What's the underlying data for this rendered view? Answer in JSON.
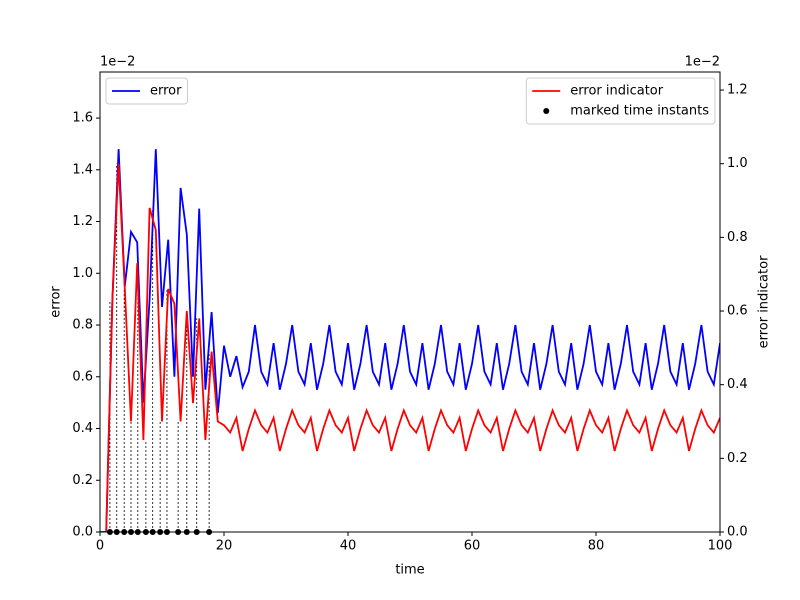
{
  "chart_data": {
    "type": "line",
    "xlabel": "time",
    "ylabel": "error",
    "y2label": "error indicator",
    "y_offset_text": "1e−2",
    "y2_offset_text": "1e−2",
    "xlim": [
      0,
      100
    ],
    "xticks": [
      0,
      20,
      40,
      60,
      80,
      100
    ],
    "ylim": [
      0,
      1.778
    ],
    "yticks": [
      {
        "value": 0,
        "label": "0.0"
      },
      0.2,
      0.4,
      0.6,
      0.8,
      {
        "value": 1,
        "label": "1.0"
      },
      1.2,
      1.4,
      1.6
    ],
    "y2lim": [
      0,
      1.249
    ],
    "y2ticks": [
      {
        "value": 0,
        "label": "0.0"
      },
      0.2,
      0.4,
      0.6,
      0.8,
      {
        "value": 1,
        "label": "1.0"
      },
      1.2
    ],
    "grid": false,
    "x": [
      0,
      1,
      2,
      3,
      4,
      5,
      6,
      7,
      8,
      9,
      10,
      11,
      12,
      13,
      14,
      15,
      16,
      17,
      18,
      19,
      20,
      21,
      22,
      23,
      24,
      25,
      26,
      27,
      28,
      29,
      30,
      31,
      32,
      33,
      34,
      35,
      36,
      37,
      38,
      39,
      40,
      41,
      42,
      43,
      44,
      45,
      46,
      47,
      48,
      49,
      50,
      51,
      52,
      53,
      54,
      55,
      56,
      57,
      58,
      59,
      60,
      61,
      62,
      63,
      64,
      65,
      66,
      67,
      68,
      69,
      70,
      71,
      72,
      73,
      74,
      75,
      76,
      77,
      78,
      79,
      80,
      81,
      82,
      83,
      84,
      85,
      86,
      87,
      88,
      89,
      90,
      91,
      92,
      93,
      94,
      95,
      96,
      97,
      98,
      99,
      100
    ],
    "series": [
      {
        "name": "error",
        "type": "line",
        "color": "#0000ff",
        "axis": "y",
        "legend": "upper left",
        "values": [
          0,
          0,
          0.9,
          1.48,
          0.95,
          1.16,
          1.12,
          0.5,
          0.9,
          1.48,
          0.87,
          1.13,
          0.6,
          1.33,
          1.15,
          0.6,
          1.25,
          0.55,
          0.85,
          0.46,
          0.72,
          0.6,
          0.68,
          0.56,
          0.62,
          0.8,
          0.62,
          0.57,
          0.73,
          0.55,
          0.65,
          0.8,
          0.62,
          0.57,
          0.73,
          0.55,
          0.65,
          0.8,
          0.62,
          0.57,
          0.73,
          0.55,
          0.65,
          0.8,
          0.62,
          0.57,
          0.73,
          0.55,
          0.65,
          0.8,
          0.62,
          0.57,
          0.73,
          0.55,
          0.65,
          0.8,
          0.62,
          0.57,
          0.73,
          0.55,
          0.65,
          0.8,
          0.62,
          0.57,
          0.73,
          0.55,
          0.65,
          0.8,
          0.62,
          0.57,
          0.73,
          0.55,
          0.65,
          0.8,
          0.62,
          0.57,
          0.73,
          0.55,
          0.65,
          0.8,
          0.62,
          0.57,
          0.73,
          0.55,
          0.65,
          0.8,
          0.62,
          0.57,
          0.73,
          0.55,
          0.65,
          0.8,
          0.62,
          0.57,
          0.73,
          0.55,
          0.65,
          0.8,
          0.62,
          0.57,
          0.73
        ]
      },
      {
        "name": "error indicator",
        "type": "line",
        "color": "#ff0000",
        "axis": "y2",
        "legend": "upper right",
        "values": [
          0,
          0,
          0.63,
          1.0,
          0.66,
          0.3,
          0.73,
          0.25,
          0.88,
          0.82,
          0.3,
          0.66,
          0.62,
          0.3,
          0.6,
          0.35,
          0.58,
          0.25,
          0.49,
          0.3,
          0.29,
          0.27,
          0.31,
          0.22,
          0.28,
          0.33,
          0.29,
          0.27,
          0.31,
          0.22,
          0.28,
          0.33,
          0.29,
          0.27,
          0.31,
          0.22,
          0.28,
          0.33,
          0.29,
          0.27,
          0.31,
          0.22,
          0.28,
          0.33,
          0.29,
          0.27,
          0.31,
          0.22,
          0.28,
          0.33,
          0.29,
          0.27,
          0.31,
          0.22,
          0.28,
          0.33,
          0.29,
          0.27,
          0.31,
          0.22,
          0.28,
          0.33,
          0.29,
          0.27,
          0.31,
          0.22,
          0.28,
          0.33,
          0.29,
          0.27,
          0.31,
          0.22,
          0.28,
          0.33,
          0.29,
          0.27,
          0.31,
          0.22,
          0.28,
          0.33,
          0.29,
          0.27,
          0.31,
          0.22,
          0.28,
          0.33,
          0.29,
          0.27,
          0.31,
          0.22,
          0.28,
          0.33,
          0.29,
          0.27,
          0.31,
          0.22,
          0.28,
          0.33,
          0.29,
          0.27,
          0.31
        ]
      },
      {
        "name": "marked time instants",
        "type": "scatter",
        "color": "#000000",
        "axis": "y",
        "legend": "upper right",
        "x": [
          1.6,
          2.7,
          3.9,
          5.0,
          6.1,
          7.4,
          8.5,
          9.7,
          10.8,
          12.6,
          14.0,
          15.6,
          17.6
        ],
        "values": [
          0,
          0,
          0,
          0,
          0,
          0,
          0,
          0,
          0,
          0,
          0,
          0,
          0
        ]
      }
    ]
  }
}
